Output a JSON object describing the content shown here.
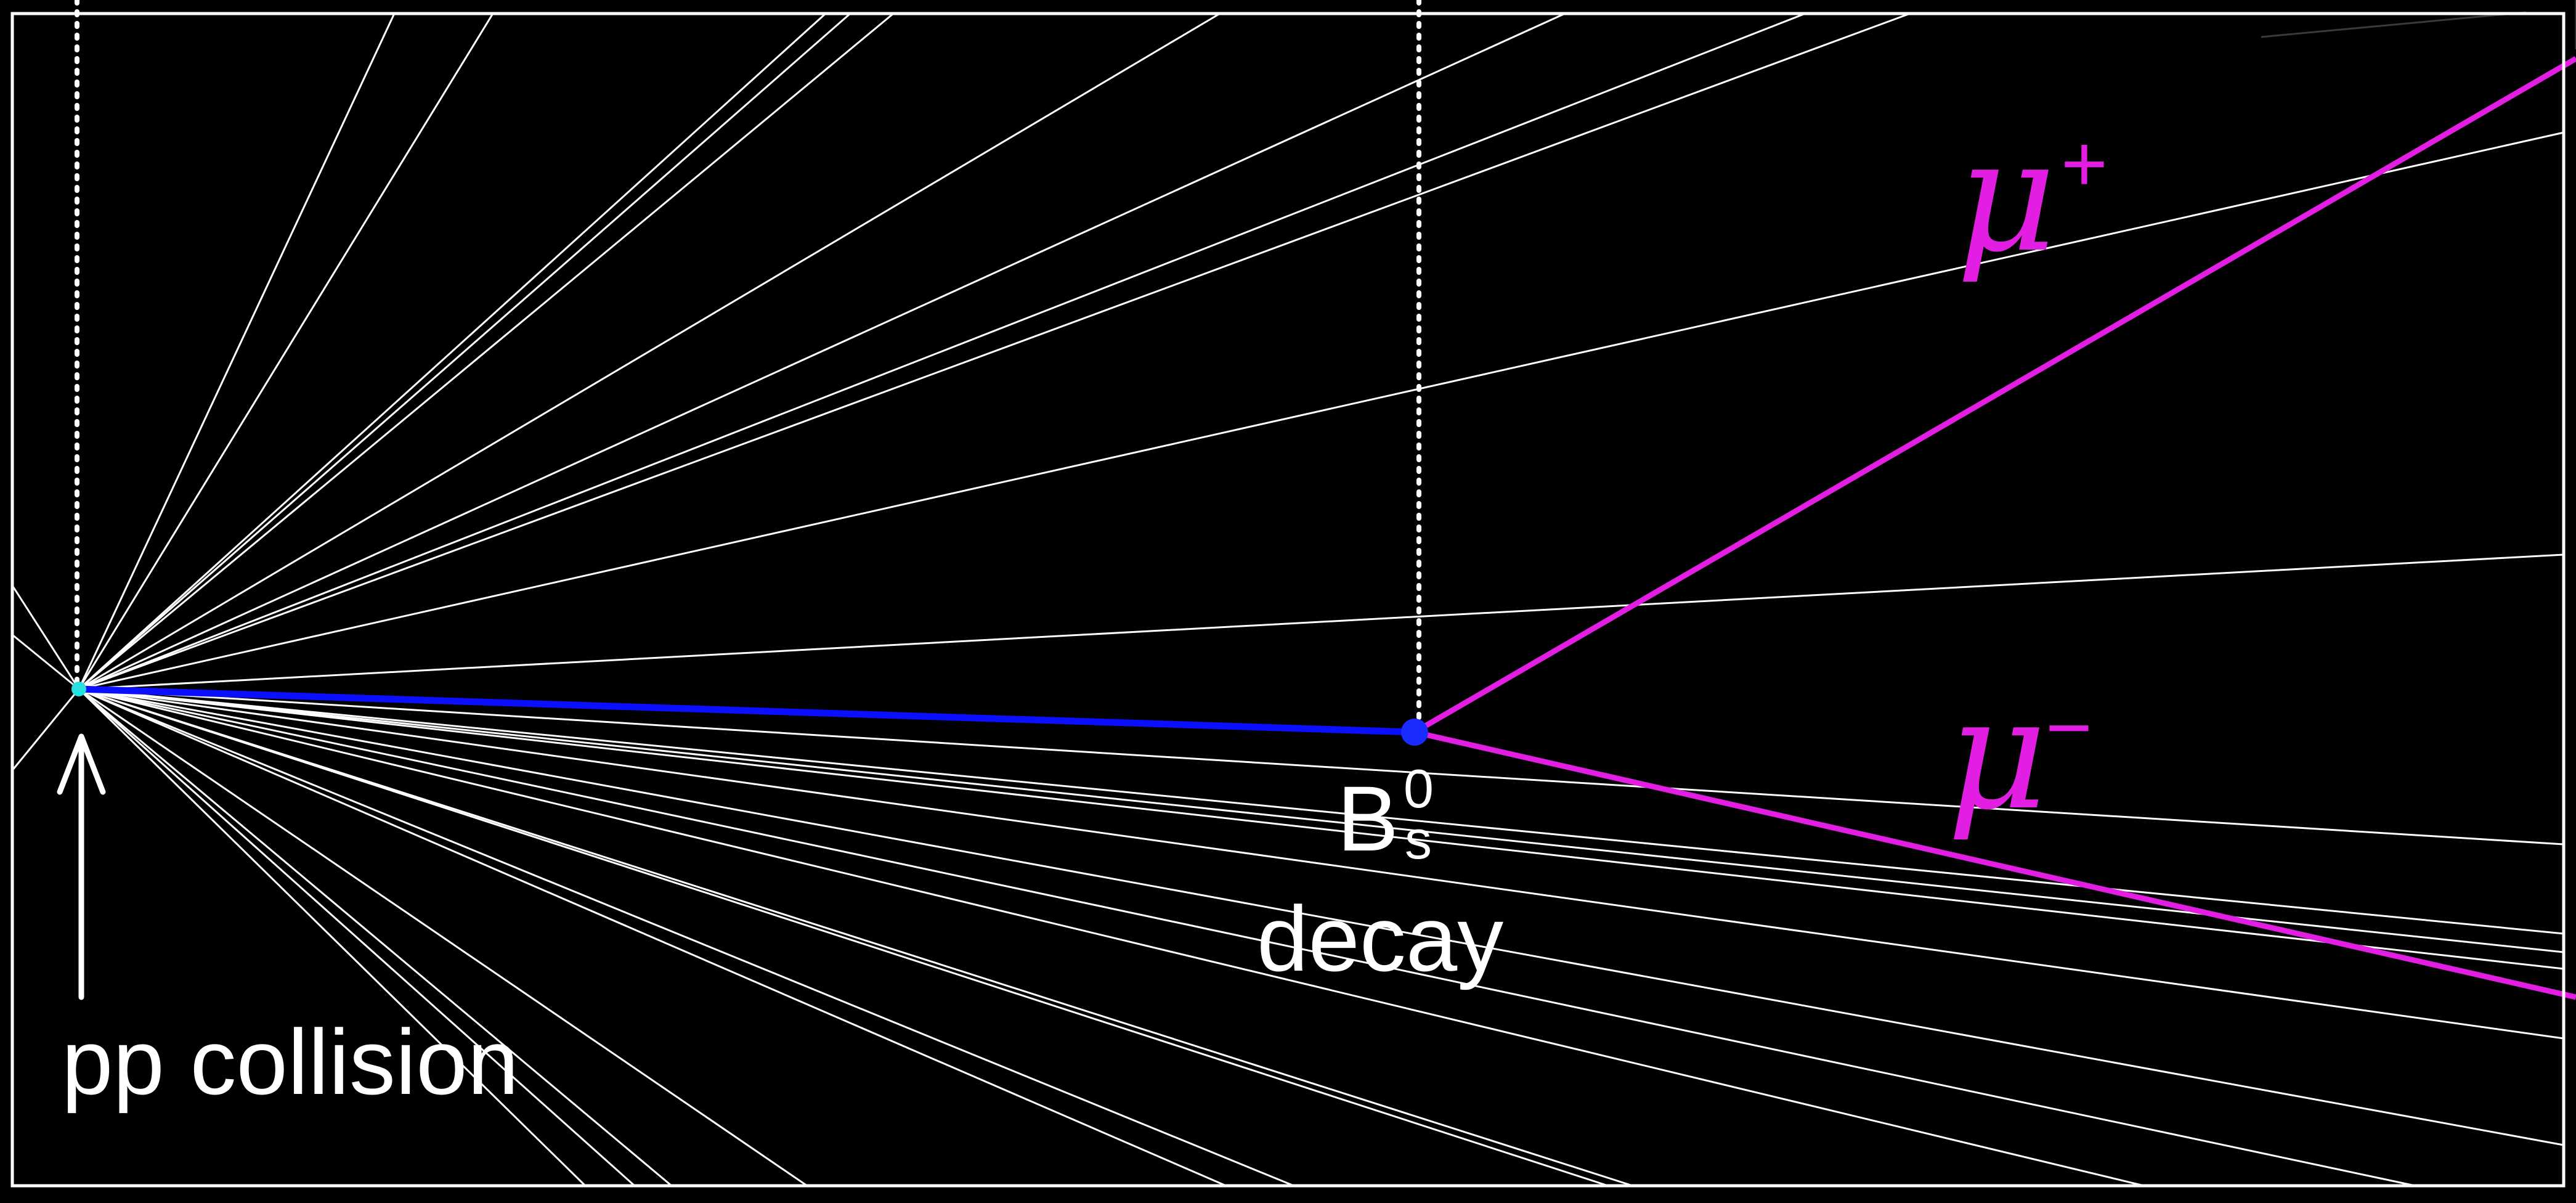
{
  "labels": {
    "collision": "pp collision",
    "decay_particle_base": "B",
    "decay_particle_sup": "0",
    "decay_particle_sub": "s",
    "decay_word": "decay",
    "mu_plus_symbol": "μ",
    "mu_plus_charge": "+",
    "mu_minus_symbol": "μ",
    "mu_minus_charge": "−"
  },
  "colors": {
    "background": "#000000",
    "frame": "#ffffff",
    "tracks": "#ffffff",
    "b_meson_track": "#0a10ff",
    "primary_vertex": "#29e0e0",
    "secondary_vertex": "#1a2bff",
    "muon": "#e21ee2"
  }
}
